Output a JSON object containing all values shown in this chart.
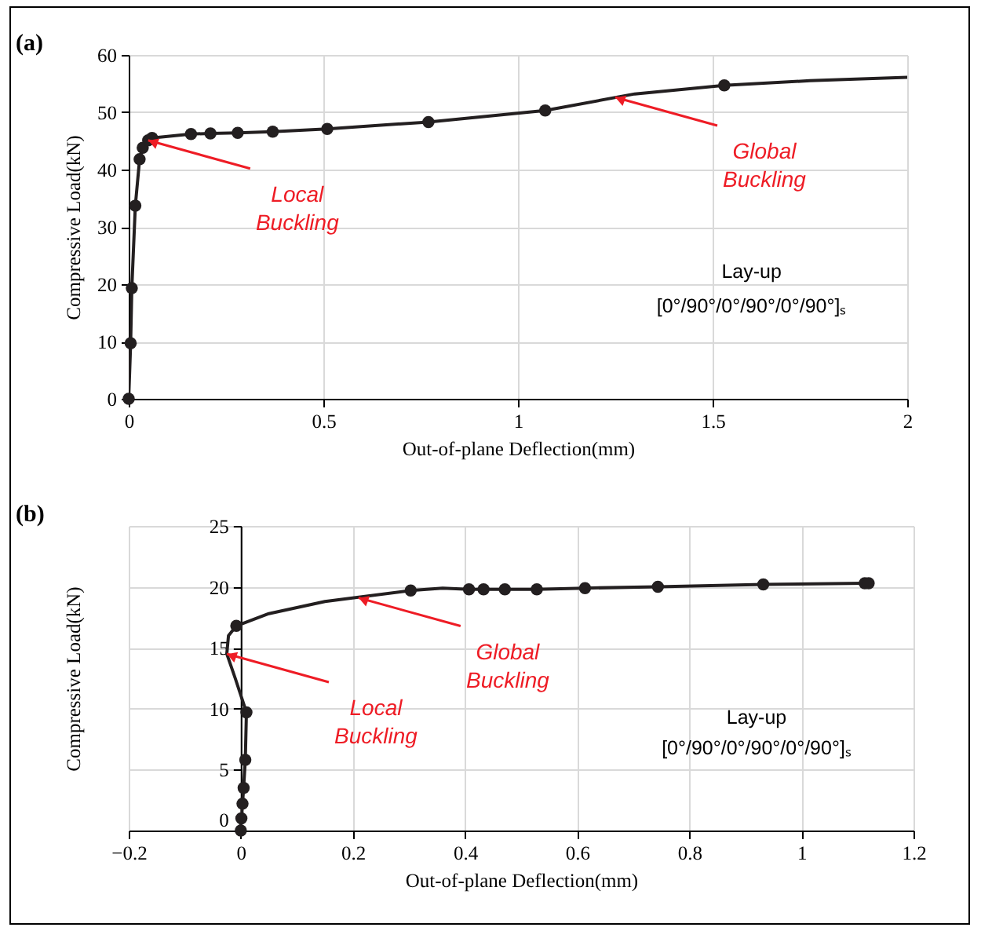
{
  "chart_data": [
    {
      "type": "line",
      "title": "(a)",
      "xlabel": "Out-of-plane Deflection(mm)",
      "ylabel": "Compressive Load(kN)",
      "xlim": [
        0,
        2
      ],
      "ylim": [
        0,
        60
      ],
      "xticks": [
        0,
        0.5,
        1,
        1.5,
        2
      ],
      "yticks": [
        0,
        10,
        20,
        30,
        40,
        50,
        60
      ],
      "grid": true,
      "series": [
        {
          "type": "line",
          "color": "#231f20",
          "marker": "none",
          "line_style": "solid",
          "x": [
            0,
            0.005,
            0.008,
            0.017,
            0.028,
            0.032,
            0.036,
            0.042,
            0.05,
            0.06,
            0.16,
            0.21,
            0.28,
            0.37,
            0.51,
            0.77,
            1.07,
            1.3,
            1.53,
            1.75,
            2
          ],
          "values": [
            0,
            9.7,
            19.3,
            33.7,
            41.8,
            42.8,
            43.8,
            44.6,
            45.1,
            45.5,
            46.2,
            46.3,
            46.4,
            46.6,
            47.1,
            48.3,
            50.3,
            53.2,
            54.7,
            55.5,
            56.1
          ]
        },
        {
          "type": "scatter",
          "color": "#231f20",
          "marker": "circle",
          "x": [
            0,
            0.005,
            0.008,
            0.017,
            0.028,
            0.036,
            0.05,
            0.06,
            0.16,
            0.21,
            0.28,
            0.37,
            0.51,
            0.77,
            1.07,
            1.53
          ],
          "values": [
            0,
            9.7,
            19.3,
            33.7,
            41.8,
            43.8,
            45.1,
            45.5,
            46.2,
            46.3,
            46.4,
            46.6,
            47.1,
            48.3,
            50.3,
            54.7
          ]
        }
      ],
      "annotations": [
        {
          "text": "Local Buckling",
          "x": 0.05,
          "y": 45.1
        },
        {
          "text": "Global Buckling",
          "x": 1.25,
          "y": 52.6
        },
        "Lay-up",
        "[0°/90°/0°/90°/0°/90°]ₛ"
      ]
    },
    {
      "type": "line",
      "title": "(b)",
      "xlabel": "Out-of-plane Deflection(mm)",
      "ylabel": "Compressive Load(kN)",
      "xlim": [
        -0.2,
        1.2
      ],
      "ylim": [
        0,
        25
      ],
      "xticks": [
        -0.2,
        0,
        0.2,
        0.4,
        0.6,
        0.8,
        1,
        1.2
      ],
      "yticks": [
        0,
        5,
        10,
        15,
        20,
        25
      ],
      "grid": true,
      "series": [
        {
          "type": "line",
          "color": "#231f20",
          "marker": "none",
          "line_style": "solid",
          "x": [
            0,
            0,
            0,
            0.001,
            0.002,
            0.003,
            0.005,
            0.008,
            0.01,
            -0.01,
            -0.025,
            -0.022,
            -0.008,
            0.05,
            0.15,
            0.303,
            0.36,
            0.407,
            0.433,
            0.471,
            0.528,
            0.614,
            0.744,
            0.932,
            1.113,
            1.12
          ],
          "values": [
            0,
            0.3,
            0.6,
            1.0,
            1.5,
            2.2,
            3.5,
            5.8,
            9.7,
            12.5,
            14.5,
            16.0,
            16.8,
            17.8,
            18.8,
            19.7,
            19.9,
            19.8,
            19.8,
            19.8,
            19.8,
            19.9,
            20.0,
            20.2,
            20.3,
            20.3
          ]
        },
        {
          "type": "scatter",
          "color": "#231f20",
          "marker": "circle",
          "x": [
            0,
            0.001,
            0.003,
            0.005,
            0.008,
            0.01,
            -0.008,
            0.303,
            0.407,
            0.433,
            0.471,
            0.528,
            0.614,
            0.744,
            0.932,
            1.113,
            1.12
          ],
          "values": [
            0,
            1.0,
            2.2,
            3.5,
            5.8,
            9.7,
            16.8,
            19.7,
            19.8,
            19.8,
            19.8,
            19.8,
            19.9,
            20.0,
            20.2,
            20.3,
            20.3
          ]
        }
      ],
      "annotations": [
        {
          "text": "Local Buckling",
          "x": -0.025,
          "y": 14.5
        },
        {
          "text": "Global Buckling",
          "x": 0.21,
          "y": 19.1
        },
        "Lay-up",
        "[0°/90°/0°/90°/0°/90°]ₛ"
      ]
    }
  ]
}
